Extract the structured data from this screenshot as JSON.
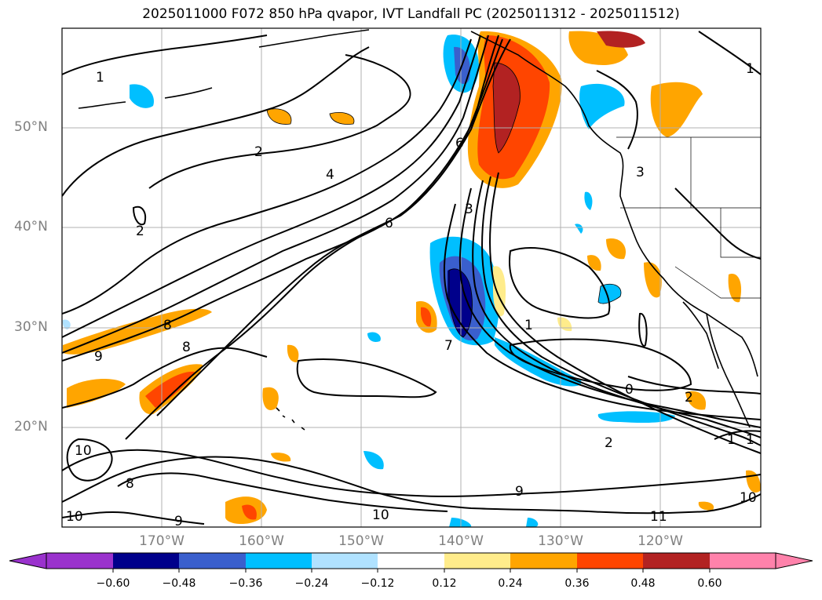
{
  "title": "2025011000 F072 850 hPa qvapor, IVT Landfall PC (2025011312 - 2025011512)",
  "lat_labels": [
    "50°N",
    "40°N",
    "30°N",
    "20°N"
  ],
  "lon_labels": [
    "170°W",
    "160°W",
    "150°W",
    "140°W",
    "130°W",
    "120°W"
  ],
  "colorbar": {
    "ticks": [
      "−0.60",
      "−0.48",
      "−0.36",
      "−0.24",
      "−0.12",
      "0.12",
      "0.24",
      "0.36",
      "0.48",
      "0.60"
    ],
    "colors": [
      "#9a32cd",
      "#00008b",
      "#3a5fcd",
      "#00bfff",
      "#b0e2ff",
      "#ffffff",
      "#ffec8b",
      "#ffa500",
      "#ff4500",
      "#b22222",
      "#ff82ab"
    ]
  },
  "contour_labels": [
    "1",
    "2",
    "4",
    "6",
    "8",
    "9",
    "10",
    "3",
    "2",
    "1",
    "0",
    "2",
    "9",
    "10",
    "11",
    "8",
    "9",
    "10",
    "1",
    "2",
    "3",
    "6",
    "8",
    "7",
    "1",
    "1",
    "10"
  ]
}
